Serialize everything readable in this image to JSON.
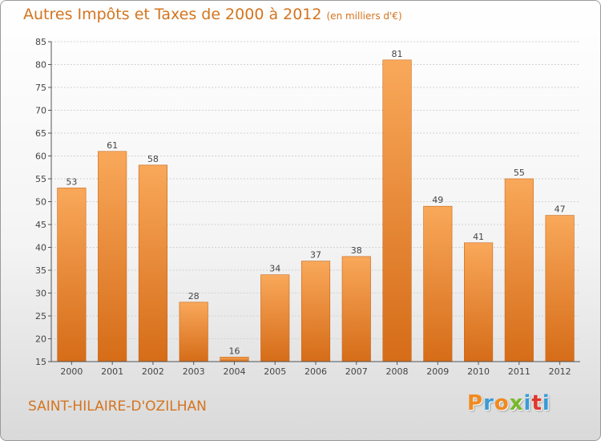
{
  "title": "Autres Impôts et Taxes de 2000 à 2012",
  "unit_label": "(en milliers d'€)",
  "commune": "SAINT-HILAIRE-D'OZILHAN",
  "logo": {
    "letters": [
      "P",
      "r",
      "o",
      "x",
      "i",
      "t",
      "i"
    ],
    "colors": [
      "#f08a1e",
      "#3a9bd5",
      "#f08a1e",
      "#78b82a",
      "#3a9bd5",
      "#e0352b",
      "#3a9bd5"
    ]
  },
  "chart_data": {
    "type": "bar",
    "categories": [
      "2000",
      "2001",
      "2002",
      "2003",
      "2004",
      "2005",
      "2006",
      "2007",
      "2008",
      "2009",
      "2010",
      "2011",
      "2012"
    ],
    "values": [
      53,
      61,
      58,
      28,
      16,
      34,
      37,
      38,
      81,
      49,
      41,
      55,
      47
    ],
    "data_labels": [
      "53",
      "61",
      "58",
      "28",
      "16",
      "34",
      "37",
      "38",
      "81",
      "49",
      "41",
      "55",
      "47"
    ],
    "ylim": [
      15,
      85
    ],
    "yticks": [
      "15",
      "20",
      "25",
      "30",
      "35",
      "40",
      "45",
      "50",
      "55",
      "60",
      "65",
      "70",
      "75",
      "80",
      "85"
    ],
    "grid": true,
    "bar_color": "#f08a2e"
  }
}
